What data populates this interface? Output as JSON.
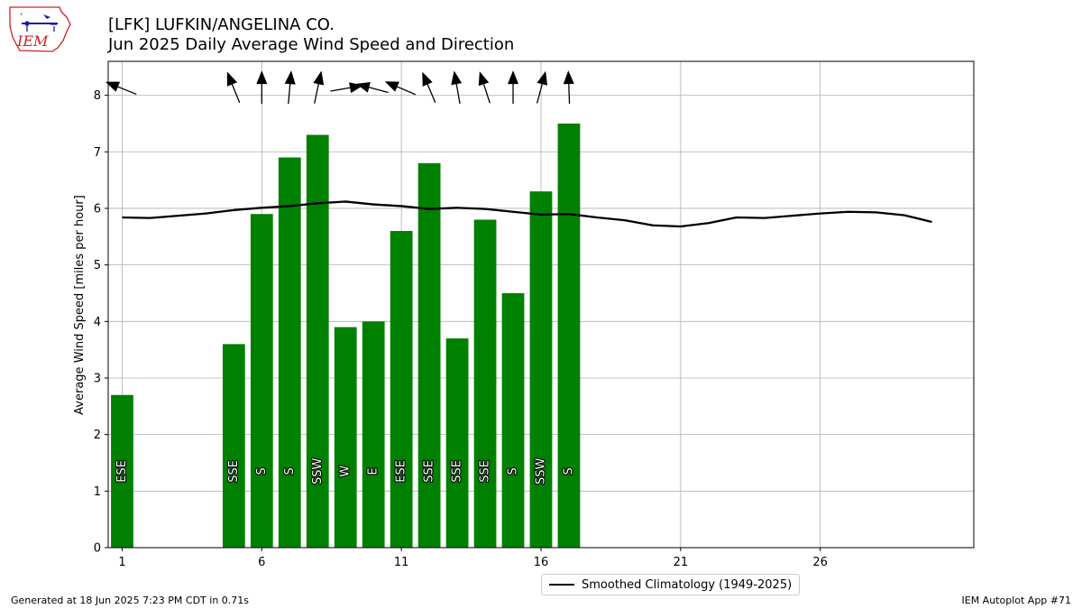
{
  "logo": {
    "text": "IEM"
  },
  "header": {
    "title": "[LFK] LUFKIN/ANGELINA CO.",
    "subtitle": "Jun 2025 Daily Average Wind Speed and Direction"
  },
  "chart_data": {
    "type": "bar",
    "ylabel": "Average Wind Speed [miles per hour]",
    "xlim": [
      0.5,
      31.5
    ],
    "ylim": [
      0,
      8.6
    ],
    "xticks": [
      1,
      6,
      11,
      16,
      21,
      26
    ],
    "yticks": [
      0,
      1,
      2,
      3,
      4,
      5,
      6,
      7,
      8
    ],
    "grid": true,
    "bar_color": "#008000",
    "bars": [
      {
        "day": 1,
        "value": 2.7,
        "direction": "ESE",
        "arrow_deg": 112
      },
      {
        "day": 5,
        "value": 3.6,
        "direction": "SSE",
        "arrow_deg": 158
      },
      {
        "day": 6,
        "value": 5.9,
        "direction": "S",
        "arrow_deg": 180
      },
      {
        "day": 7,
        "value": 6.9,
        "direction": "S",
        "arrow_deg": 185
      },
      {
        "day": 8,
        "value": 7.3,
        "direction": "SSW",
        "arrow_deg": 192
      },
      {
        "day": 9,
        "value": 3.9,
        "direction": "W",
        "arrow_deg": 260
      },
      {
        "day": 10,
        "value": 4.0,
        "direction": "E",
        "arrow_deg": 105
      },
      {
        "day": 11,
        "value": 5.6,
        "direction": "ESE",
        "arrow_deg": 113
      },
      {
        "day": 12,
        "value": 6.8,
        "direction": "SSE",
        "arrow_deg": 157
      },
      {
        "day": 13,
        "value": 3.7,
        "direction": "SSE",
        "arrow_deg": 170
      },
      {
        "day": 14,
        "value": 5.8,
        "direction": "SSE",
        "arrow_deg": 162
      },
      {
        "day": 15,
        "value": 4.5,
        "direction": "S",
        "arrow_deg": 180
      },
      {
        "day": 16,
        "value": 6.3,
        "direction": "SSW",
        "arrow_deg": 195
      },
      {
        "day": 17,
        "value": 7.5,
        "direction": "S",
        "arrow_deg": 178
      }
    ],
    "climatology": {
      "name": "Smoothed Climatology (1949-2025)",
      "color": "#000000",
      "days": [
        1,
        2,
        3,
        4,
        5,
        6,
        7,
        8,
        9,
        10,
        11,
        12,
        13,
        14,
        15,
        16,
        17,
        18,
        19,
        20,
        21,
        22,
        23,
        24,
        25,
        26,
        27,
        28,
        29,
        30
      ],
      "values": [
        5.84,
        5.83,
        5.87,
        5.91,
        5.97,
        6.01,
        6.04,
        6.09,
        6.12,
        6.07,
        6.04,
        5.99,
        6.01,
        5.99,
        5.94,
        5.89,
        5.9,
        5.84,
        5.79,
        5.7,
        5.68,
        5.74,
        5.84,
        5.83,
        5.87,
        5.91,
        5.94,
        5.93,
        5.88,
        5.76
      ]
    }
  },
  "legend": {
    "label": "Smoothed Climatology (1949-2025)"
  },
  "footer": {
    "generated": "Generated at 18 Jun 2025 7:23 PM CDT in 0.71s",
    "app": "IEM Autoplot App #71"
  }
}
